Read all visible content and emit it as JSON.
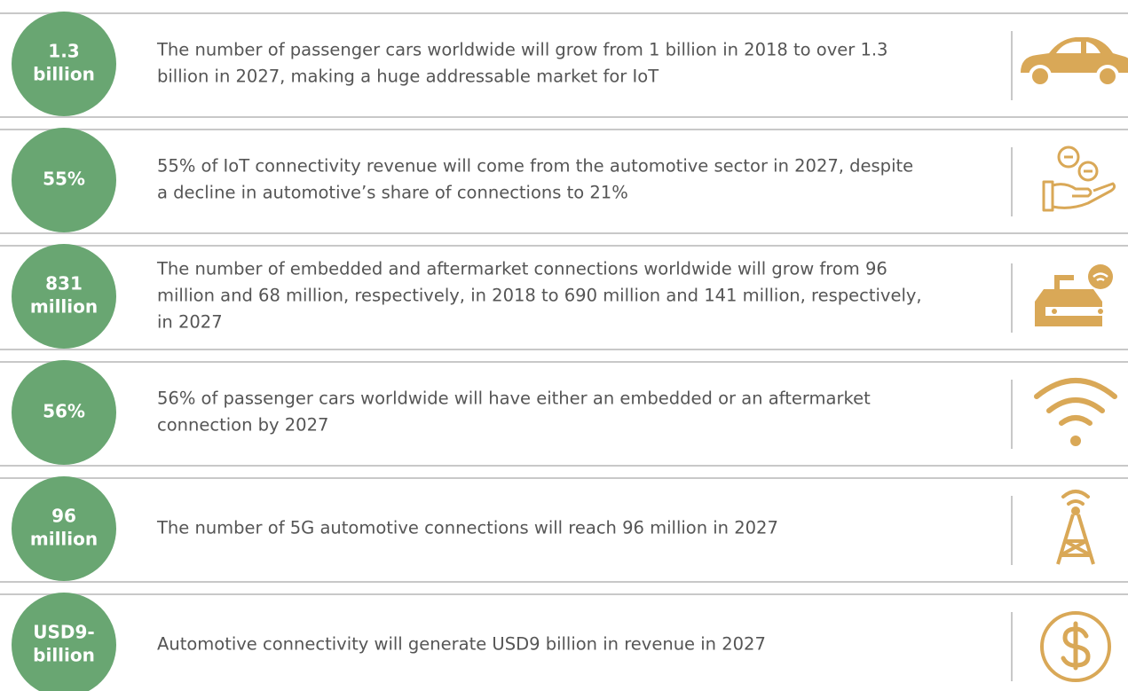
{
  "rows": [
    {
      "stat": [
        "1.3",
        "billion"
      ],
      "text": [
        "The number of passenger cars worldwide will grow from 1 billion in 2018 to over 1.3",
        "billion in 2027, making a huge addressable market for IoT"
      ]
    },
    {
      "stat": [
        "55%"
      ],
      "text": [
        "55% of IoT connectivity revenue will come from the automotive sector in 2027, despite",
        "a decline in automotive’s share of connections to 21%"
      ]
    },
    {
      "stat": [
        "831",
        "million"
      ],
      "text": [
        "The number of embedded and aftermarket connections worldwide will grow from 96",
        "million and 68 million, respectively, in 2018 to 690 million and 141 million, respectively,",
        "in 2027"
      ]
    },
    {
      "stat": [
        "56%"
      ],
      "text": [
        "56% of passenger cars worldwide will have either an embedded or an aftermarket",
        "connection by 2027"
      ]
    },
    {
      "stat": [
        "96",
        "million"
      ],
      "text": [
        "The number of 5G automotive connections will reach 96 million in 2027"
      ]
    },
    {
      "stat": [
        "USD9-",
        "billion"
      ],
      "text": [
        "Automotive connectivity will generate USD9 billion in revenue in 2027"
      ]
    }
  ]
}
